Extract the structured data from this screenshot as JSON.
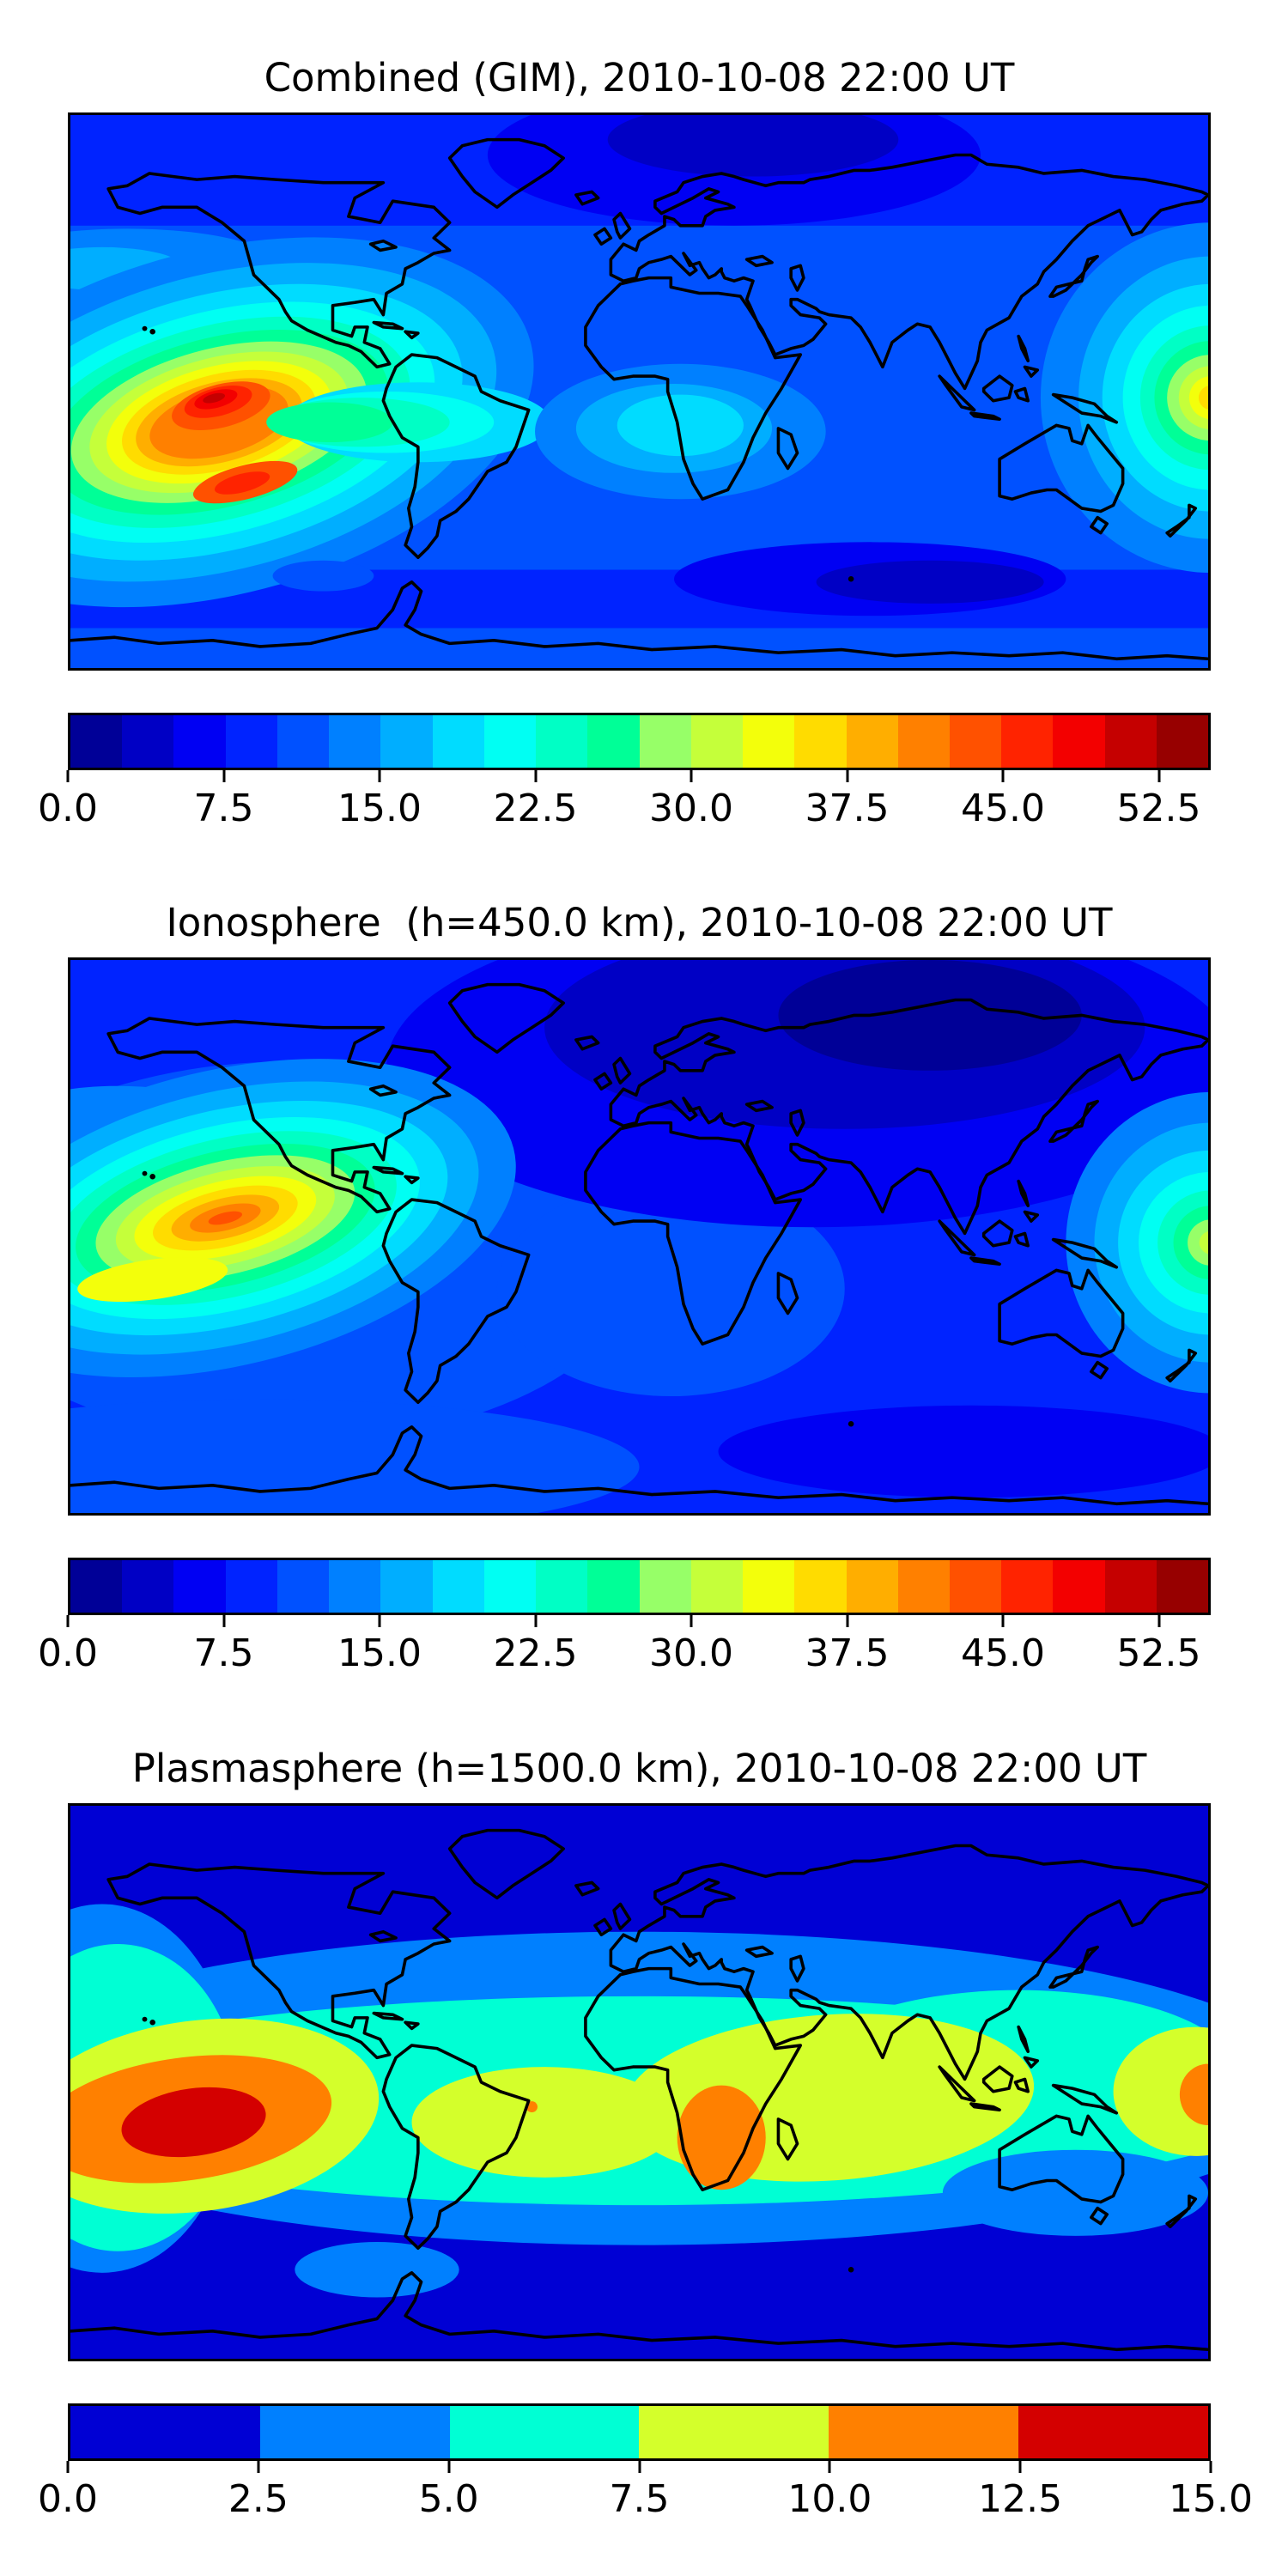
{
  "figure": {
    "background": "#ffffff",
    "text_color": "#000000",
    "description_visible_text_only": true
  },
  "colormaps": {
    "jet22": [
      "#000097",
      "#0000C5",
      "#0000F3",
      "#0023FF",
      "#0051FF",
      "#0080FF",
      "#00AEFF",
      "#00DCFF",
      "#00FFF3",
      "#00FFC5",
      "#00FF97",
      "#97FF68",
      "#C5FF3A",
      "#F3FF0B",
      "#FFDC00",
      "#FFAE00",
      "#FF8000",
      "#FF5100",
      "#FF2300",
      "#F30000",
      "#C50000",
      "#970000"
    ],
    "jet6": [
      "#0000D4",
      "#0080FF",
      "#00FFD4",
      "#D4FF2B",
      "#FF8000",
      "#D40000"
    ]
  },
  "panels": [
    {
      "name": "combined",
      "title": "Combined (GIM), 2010-10-08 22:00 UT",
      "colorbar": {
        "colormap": "jet22",
        "vmin": 0,
        "vmax": 55,
        "tick_values": [
          0,
          7.5,
          15,
          22.5,
          30,
          37.5,
          45,
          52.5
        ],
        "tick_labels": [
          "0.0",
          "7.5",
          "15.0",
          "22.5",
          "30.0",
          "37.5",
          "45.0",
          "52.5"
        ]
      }
    },
    {
      "name": "ionosphere",
      "title": "Ionosphere  (h=450.0 km), 2010-10-08 22:00 UT",
      "colorbar": {
        "colormap": "jet22",
        "vmin": 0,
        "vmax": 55,
        "tick_values": [
          0,
          7.5,
          15,
          22.5,
          30,
          37.5,
          45,
          52.5
        ],
        "tick_labels": [
          "0.0",
          "7.5",
          "15.0",
          "22.5",
          "30.0",
          "37.5",
          "45.0",
          "52.5"
        ]
      }
    },
    {
      "name": "plasmasphere",
      "title": "Plasmasphere (h=1500.0 km), 2010-10-08 22:00 UT",
      "colorbar": {
        "colormap": "jet6",
        "vmin": 0,
        "vmax": 15,
        "tick_values": [
          0,
          2.5,
          5,
          7.5,
          10,
          12.5,
          15
        ],
        "tick_labels": [
          "0.0",
          "2.5",
          "5.0",
          "7.5",
          "10.0",
          "12.5",
          "15.0"
        ]
      }
    }
  ],
  "chart_data": [
    {
      "type": "heatmap",
      "title": "Combined (GIM), 2010-10-08 22:00 UT",
      "projection": "equirectangular world map",
      "lon_range": [
        -180,
        180
      ],
      "lat_range": [
        -90,
        90
      ],
      "colormap": "jet (discrete filled contours)",
      "contour_levels": {
        "min": 0,
        "max": 55,
        "step": 2.5
      },
      "colorbar_tick_labels": [
        "0.0",
        "7.5",
        "15.0",
        "22.5",
        "30.0",
        "37.5",
        "45.0",
        "52.5"
      ],
      "legend_position": "horizontal colorbar below map",
      "grid": false,
      "peak": {
        "value": 53,
        "lon": -133,
        "lat": -3,
        "description": "strong equatorial ionization hotspot over the southeast Pacific west of South America"
      },
      "features": [
        {
          "description": "secondary hot lobe south of the main peak",
          "lon": -130,
          "lat": -25,
          "value": 45
        },
        {
          "description": "enhancement at the right map edge over the western Pacific near New Guinea",
          "lon": 178,
          "lat": -3,
          "value": 38
        },
        {
          "description": "moderate cyan enhancement over central/western Africa",
          "lon": 10,
          "lat": -13,
          "value": 22
        },
        {
          "description": "very low TEC patch over northern Europe and Siberia",
          "lon": 35,
          "lat": 77,
          "value": 3
        },
        {
          "description": "low TEC patch over the southern Indian Ocean",
          "lon": 75,
          "lat": -62,
          "value": 4
        },
        {
          "description": "background mid-latitude ocean level",
          "value": 11
        }
      ]
    },
    {
      "type": "heatmap",
      "title": "Ionosphere  (h=450.0 km), 2010-10-08 22:00 UT",
      "projection": "equirectangular world map",
      "lon_range": [
        -180,
        180
      ],
      "lat_range": [
        -90,
        90
      ],
      "colormap": "jet (discrete filled contours)",
      "contour_levels": {
        "min": 0,
        "max": 55,
        "step": 2.5
      },
      "colorbar_tick_labels": [
        "0.0",
        "7.5",
        "15.0",
        "22.5",
        "30.0",
        "37.5",
        "45.0",
        "52.5"
      ],
      "legend_position": "horizontal colorbar below map",
      "grid": false,
      "peak": {
        "value": 46,
        "lon": -132,
        "lat": 0,
        "description": "equatorial ionization hotspot over the southeast Pacific, weaker than the combined map"
      },
      "features": [
        {
          "description": "green/yellow plume extending southwest and toward the Peruvian coast",
          "lon": -110,
          "lat": -10,
          "value": 25
        },
        {
          "description": "green enhancement at the right map edge over the western Pacific",
          "lon": 178,
          "lat": -3,
          "value": 28
        },
        {
          "description": "very low TEC region over central Russia / north Asia",
          "lon": 85,
          "lat": 70,
          "value": 1.5
        },
        {
          "description": "dark low patch over the south Indian Ocean",
          "lon": 100,
          "lat": -65,
          "value": 3
        },
        {
          "description": "background ocean level",
          "value": 8
        }
      ]
    },
    {
      "type": "heatmap",
      "title": "Plasmasphere (h=1500.0 km), 2010-10-08 22:00 UT",
      "projection": "equirectangular world map",
      "lon_range": [
        -180,
        180
      ],
      "lat_range": [
        -90,
        90
      ],
      "colormap": "jet (discrete filled contours, 6 levels)",
      "contour_levels": {
        "min": 0,
        "max": 15,
        "step": 2.5
      },
      "colorbar_tick_labels": [
        "0.0",
        "2.5",
        "5.0",
        "7.5",
        "10.0",
        "12.5",
        "15.0"
      ],
      "legend_position": "horizontal colorbar below map",
      "grid": false,
      "peak": {
        "value": 14,
        "lon": -140,
        "lat": -13,
        "description": "red plasmaspheric maximum over the central-south Pacific"
      },
      "features": [
        {
          "description": "continuous equatorial belt of 5-10 spanning roughly ±25 deg latitude",
          "value": 7.5
        },
        {
          "description": "orange enhancement over southern Africa",
          "lon": 25,
          "lat": -18,
          "value": 11
        },
        {
          "description": "orange enhancement at the right map edge",
          "lon": 180,
          "lat": -4,
          "value": 11
        },
        {
          "description": "light-blue transition band near ±35-45 deg latitude",
          "value": 3.5
        },
        {
          "description": "dark blue background poleward of ±45 deg",
          "value": 1
        }
      ]
    }
  ]
}
